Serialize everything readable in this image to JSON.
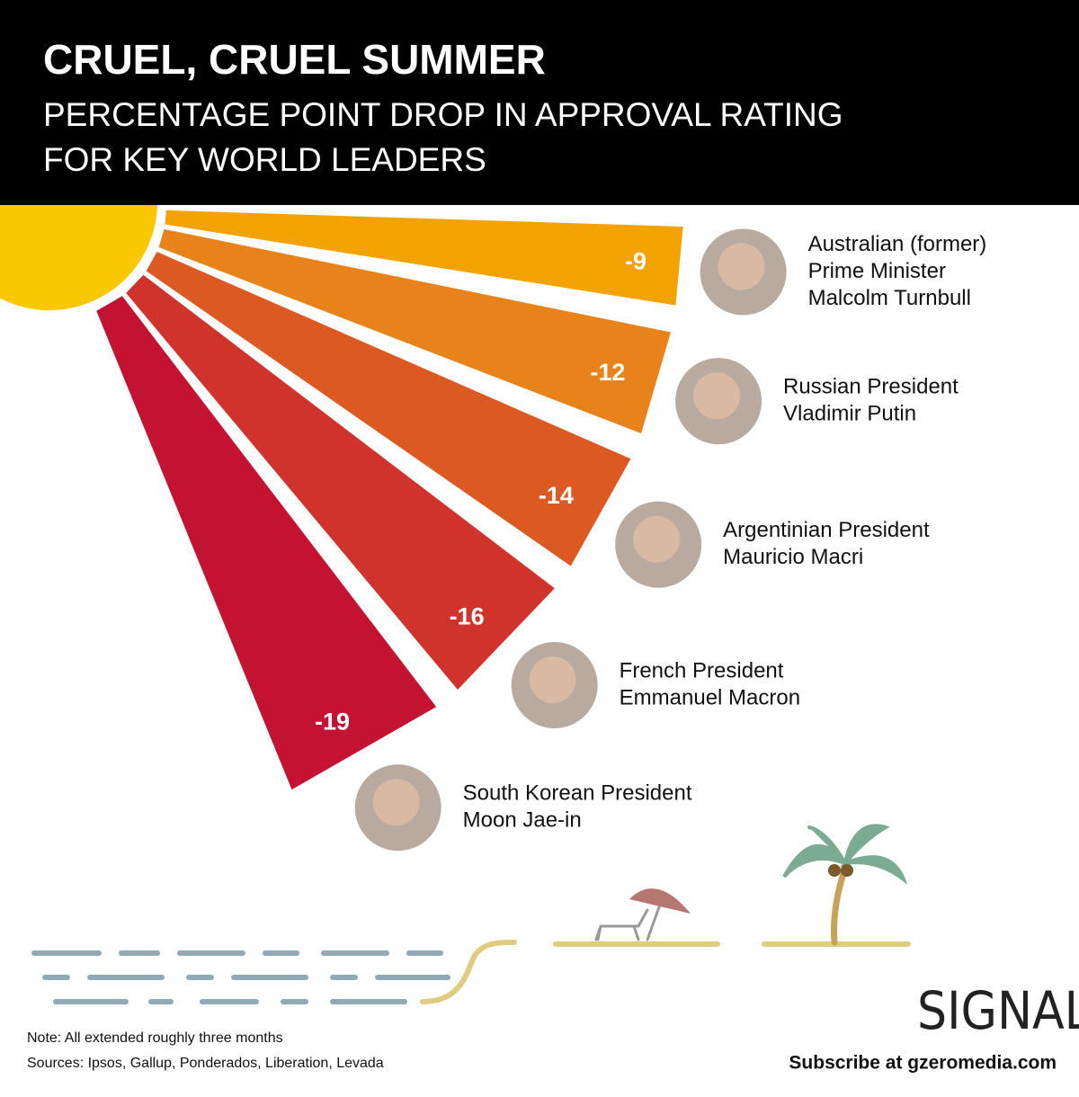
{
  "chart_data": {
    "type": "sunburst-rays",
    "title": "CRUEL, CRUEL SUMMER",
    "subtitle": [
      "PERCENTAGE POINT DROP IN APPROVAL RATING",
      "FOR KEY WORLD LEADERS"
    ],
    "categories": [
      [
        "Australian (former)",
        "Prime Minister",
        "Malcolm Turnbull"
      ],
      [
        "Russian President",
        "Vladimir Putin"
      ],
      [
        "Argentinian President",
        "Mauricio Macri"
      ],
      [
        "French President",
        "Emmanuel Macron"
      ],
      [
        "South Korean President",
        "Moon Jae-in"
      ]
    ],
    "values": [
      -9,
      -12,
      -14,
      -16,
      -19
    ],
    "colors": [
      "#f2a300",
      "#e8821a",
      "#dc5a22",
      "#d0332b",
      "#c41233"
    ],
    "notes": [
      "Note: All extended roughly three months",
      "Sources: Ipsos, Gallup, Ponderados, Liberation, Levada"
    ],
    "brand": "SIGNAL",
    "subscribe": "Subscribe at gzeromedia.com"
  }
}
